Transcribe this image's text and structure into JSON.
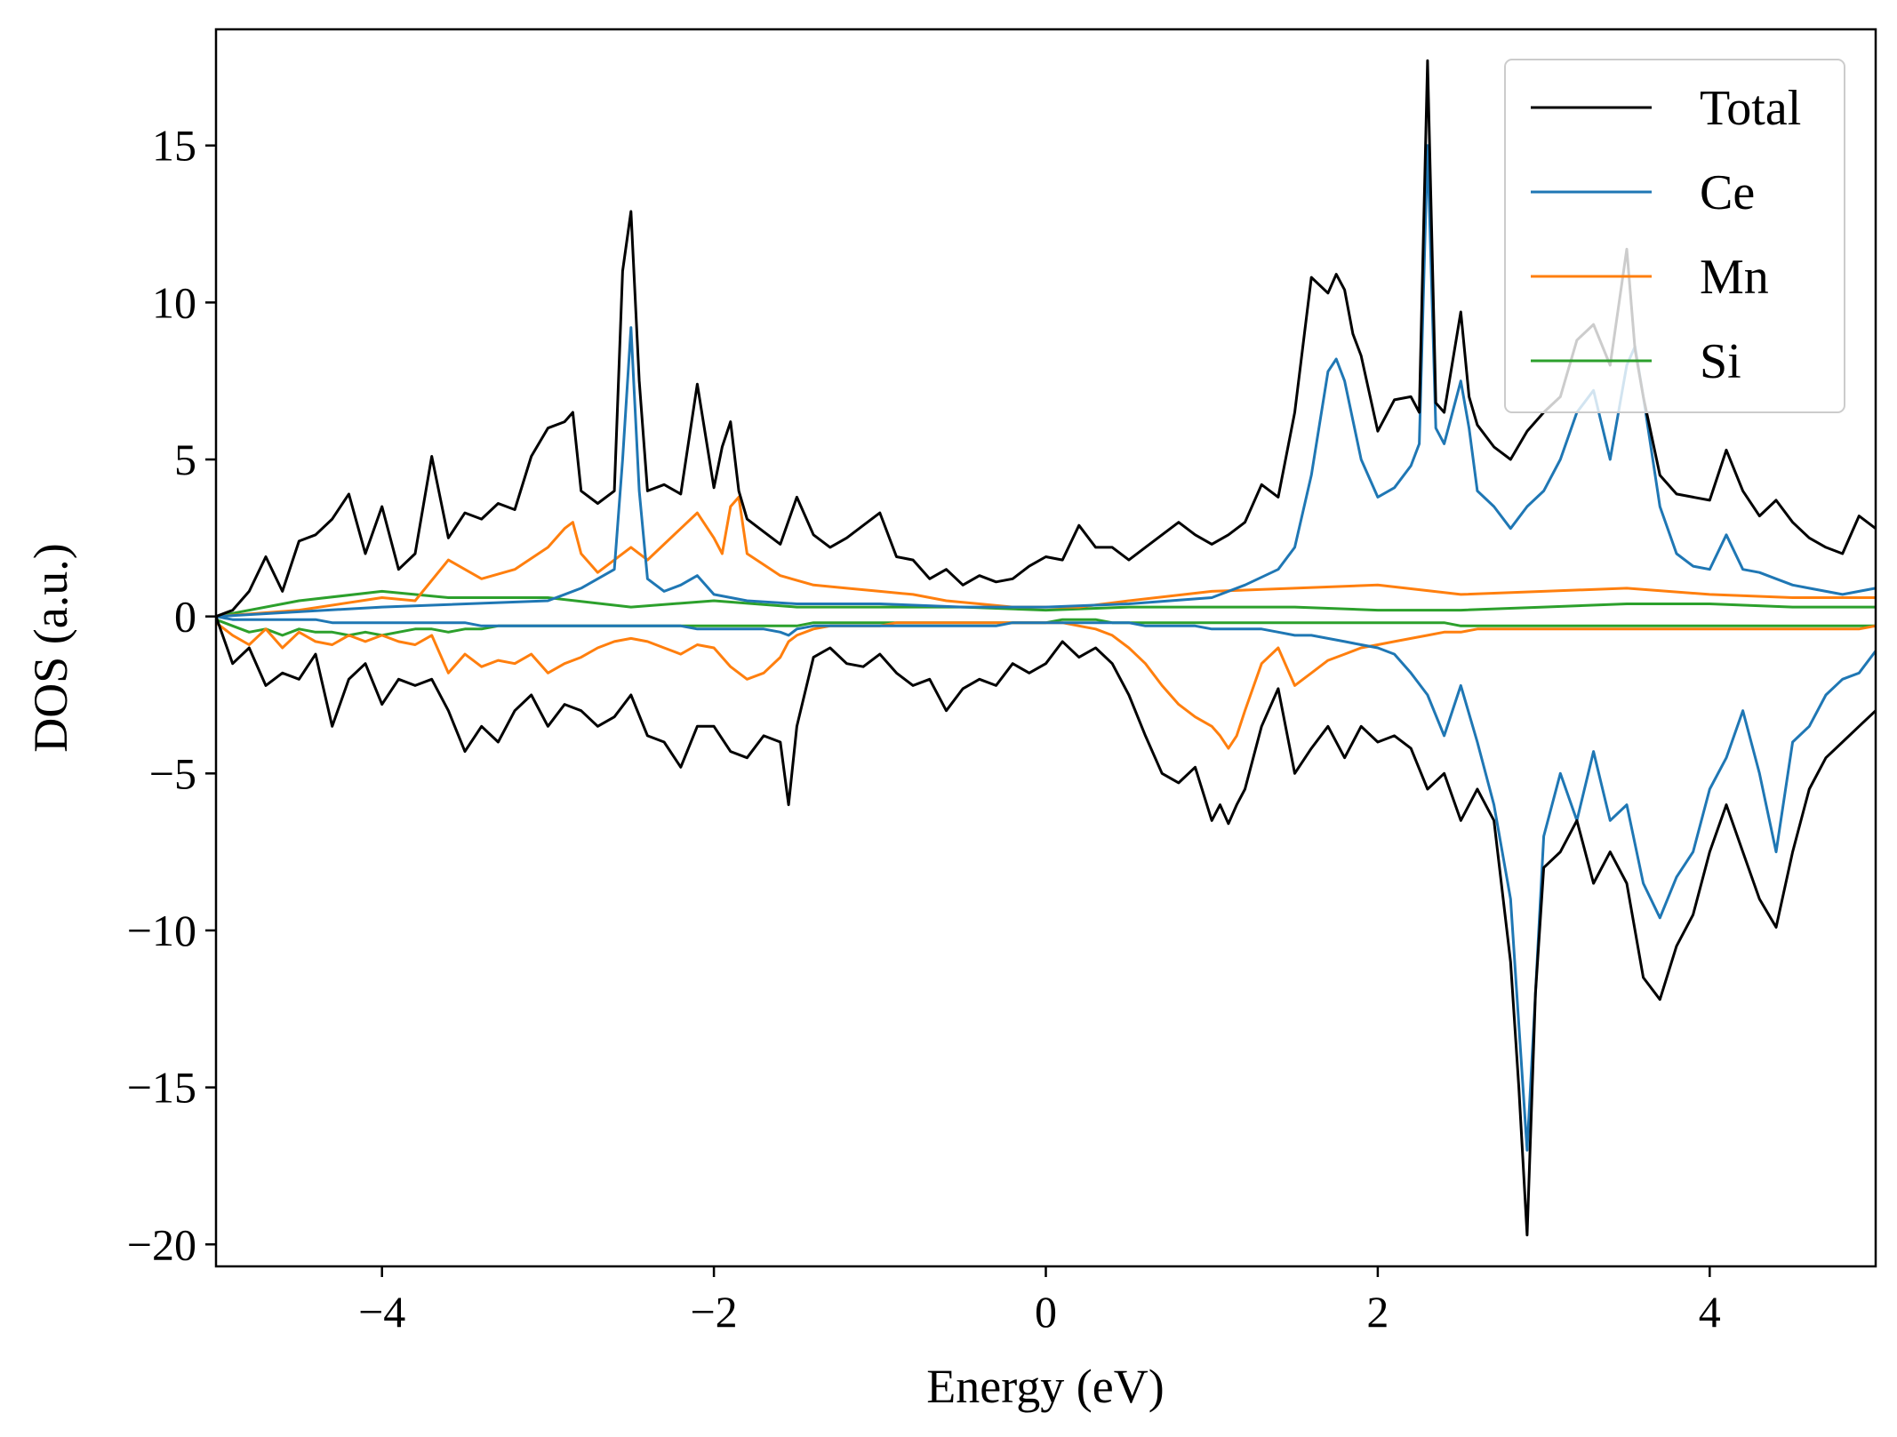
{
  "chart_data": {
    "type": "line",
    "xlabel": "Energy (eV)",
    "ylabel": "DOS (a.u.)",
    "xlim": [
      -5,
      5
    ],
    "ylim": [
      -20.7,
      18.7
    ],
    "xticks": [
      -4,
      -2,
      0,
      2,
      4
    ],
    "xtick_labels": [
      "−4",
      "−2",
      "0",
      "2",
      "4"
    ],
    "yticks": [
      15,
      10,
      5,
      0,
      -5,
      -10,
      -15,
      -20
    ],
    "ytick_labels": [
      "15",
      "10",
      "5",
      "0",
      "−5",
      "−10",
      "−15",
      "−20"
    ],
    "grid": false,
    "legend": {
      "position": "top-right"
    },
    "series": [
      {
        "name": "Total",
        "color": "#000000",
        "up_x": [
          -5,
          -4.9,
          -4.8,
          -4.7,
          -4.6,
          -4.5,
          -4.4,
          -4.3,
          -4.2,
          -4.1,
          -4.0,
          -3.9,
          -3.8,
          -3.7,
          -3.6,
          -3.5,
          -3.4,
          -3.3,
          -3.2,
          -3.1,
          -3.0,
          -2.9,
          -2.85,
          -2.8,
          -2.7,
          -2.6,
          -2.55,
          -2.5,
          -2.45,
          -2.4,
          -2.3,
          -2.2,
          -2.1,
          -2.0,
          -1.95,
          -1.9,
          -1.85,
          -1.8,
          -1.7,
          -1.6,
          -1.5,
          -1.4,
          -1.3,
          -1.2,
          -1.1,
          -1.0,
          -0.9,
          -0.8,
          -0.7,
          -0.6,
          -0.5,
          -0.4,
          -0.3,
          -0.2,
          -0.1,
          0.0,
          0.1,
          0.2,
          0.3,
          0.4,
          0.5,
          0.6,
          0.7,
          0.8,
          0.9,
          1.0,
          1.1,
          1.2,
          1.3,
          1.4,
          1.5,
          1.6,
          1.7,
          1.75,
          1.8,
          1.85,
          1.9,
          2.0,
          2.1,
          2.2,
          2.25,
          2.3,
          2.35,
          2.4,
          2.5,
          2.55,
          2.6,
          2.7,
          2.8,
          2.9,
          3.0,
          3.1,
          3.2,
          3.3,
          3.4,
          3.5,
          3.55,
          3.6,
          3.7,
          3.8,
          3.9,
          4.0,
          4.1,
          4.2,
          4.3,
          4.4,
          4.5,
          4.6,
          4.7,
          4.8,
          4.9,
          5.0
        ],
        "up_y": [
          0,
          0.2,
          0.8,
          1.9,
          0.8,
          2.4,
          2.6,
          3.1,
          3.9,
          2.0,
          3.5,
          1.5,
          2.0,
          5.1,
          2.5,
          3.3,
          3.1,
          3.6,
          3.4,
          5.1,
          6.0,
          6.2,
          6.5,
          4.0,
          3.6,
          4.0,
          11.0,
          12.9,
          7.5,
          4.0,
          4.2,
          3.9,
          7.4,
          4.1,
          5.4,
          6.2,
          4.0,
          3.1,
          2.7,
          2.3,
          3.8,
          2.6,
          2.2,
          2.5,
          2.9,
          3.3,
          1.9,
          1.8,
          1.2,
          1.5,
          1.0,
          1.3,
          1.1,
          1.2,
          1.6,
          1.9,
          1.8,
          2.9,
          2.2,
          2.2,
          1.8,
          2.2,
          2.6,
          3.0,
          2.6,
          2.3,
          2.6,
          3.0,
          4.2,
          3.8,
          6.5,
          10.8,
          10.3,
          10.9,
          10.4,
          9.0,
          8.3,
          5.9,
          6.9,
          7.0,
          6.5,
          17.7,
          6.8,
          6.5,
          9.7,
          7.0,
          6.1,
          5.4,
          5.0,
          5.9,
          6.5,
          7.0,
          8.8,
          9.3,
          8.0,
          11.7,
          8.5,
          7.0,
          4.5,
          3.9,
          3.8,
          3.7,
          5.3,
          4.0,
          3.2,
          3.7,
          3.0,
          2.5,
          2.2,
          2.0,
          3.2,
          2.8
        ]
      },
      {
        "name": "Ce",
        "color": "#1f77b4",
        "up_x": [
          -5,
          -4.0,
          -3.0,
          -2.8,
          -2.7,
          -2.6,
          -2.55,
          -2.5,
          -2.45,
          -2.4,
          -2.3,
          -2.2,
          -2.1,
          -2.0,
          -1.8,
          -1.5,
          -1.0,
          -0.5,
          0.0,
          0.5,
          1.0,
          1.2,
          1.4,
          1.5,
          1.6,
          1.7,
          1.75,
          1.8,
          1.9,
          2.0,
          2.1,
          2.2,
          2.25,
          2.3,
          2.35,
          2.4,
          2.5,
          2.55,
          2.6,
          2.7,
          2.8,
          2.9,
          3.0,
          3.1,
          3.2,
          3.3,
          3.4,
          3.5,
          3.55,
          3.6,
          3.7,
          3.8,
          3.9,
          4.0,
          4.1,
          4.2,
          4.3,
          4.4,
          4.5,
          4.6,
          4.7,
          4.8,
          4.9,
          5.0
        ],
        "up_y": [
          0,
          0.3,
          0.5,
          0.9,
          1.2,
          1.5,
          5.0,
          9.2,
          4.0,
          1.2,
          0.8,
          1.0,
          1.3,
          0.7,
          0.5,
          0.4,
          0.4,
          0.3,
          0.3,
          0.4,
          0.6,
          1.0,
          1.5,
          2.2,
          4.5,
          7.8,
          8.2,
          7.5,
          5.0,
          3.8,
          4.1,
          4.8,
          5.5,
          15.0,
          6.0,
          5.5,
          7.5,
          6.0,
          4.0,
          3.5,
          2.8,
          3.5,
          4.0,
          5.0,
          6.5,
          7.2,
          5.0,
          8.0,
          8.6,
          7.0,
          3.5,
          2.0,
          1.6,
          1.5,
          2.6,
          1.5,
          1.4,
          1.2,
          1.0,
          0.9,
          0.8,
          0.7,
          0.8,
          0.9
        ]
      },
      {
        "name": "Mn",
        "color": "#ff7f0e",
        "up_x": [
          -5,
          -4.5,
          -4.0,
          -3.8,
          -3.6,
          -3.4,
          -3.2,
          -3.0,
          -2.9,
          -2.85,
          -2.8,
          -2.7,
          -2.6,
          -2.5,
          -2.4,
          -2.3,
          -2.2,
          -2.1,
          -2.0,
          -1.95,
          -1.9,
          -1.85,
          -1.8,
          -1.6,
          -1.4,
          -1.2,
          -1.0,
          -0.8,
          -0.6,
          -0.4,
          -0.2,
          0.0,
          0.2,
          0.5,
          1.0,
          1.5,
          2.0,
          2.5,
          3.0,
          3.5,
          4.0,
          4.5,
          5.0
        ],
        "up_y": [
          0,
          0.2,
          0.6,
          0.5,
          1.8,
          1.2,
          1.5,
          2.2,
          2.8,
          3.0,
          2.0,
          1.4,
          1.8,
          2.2,
          1.8,
          2.3,
          2.8,
          3.3,
          2.5,
          2.0,
          3.5,
          3.8,
          2.0,
          1.3,
          1.0,
          0.9,
          0.8,
          0.7,
          0.5,
          0.4,
          0.3,
          0.3,
          0.3,
          0.5,
          0.8,
          0.9,
          1.0,
          0.7,
          0.8,
          0.9,
          0.7,
          0.6,
          0.6
        ]
      },
      {
        "name": "Si",
        "color": "#2ca02c",
        "up_x": [
          -5,
          -4.5,
          -4.0,
          -3.6,
          -3.0,
          -2.5,
          -2.0,
          -1.5,
          -1.0,
          -0.5,
          0.0,
          0.5,
          1.0,
          1.5,
          2.0,
          2.5,
          3.0,
          3.5,
          4.0,
          4.5,
          5.0
        ],
        "up_y": [
          0,
          0.5,
          0.8,
          0.6,
          0.6,
          0.3,
          0.5,
          0.3,
          0.3,
          0.3,
          0.2,
          0.3,
          0.3,
          0.3,
          0.2,
          0.2,
          0.3,
          0.4,
          0.4,
          0.3,
          0.3
        ]
      }
    ],
    "spin_down_x": [
      -5,
      -4.9,
      -4.8,
      -4.7,
      -4.6,
      -4.5,
      -4.4,
      -4.3,
      -4.2,
      -4.1,
      -4.0,
      -3.9,
      -3.8,
      -3.7,
      -3.6,
      -3.5,
      -3.4,
      -3.3,
      -3.2,
      -3.1,
      -3.0,
      -2.9,
      -2.8,
      -2.7,
      -2.6,
      -2.5,
      -2.4,
      -2.3,
      -2.2,
      -2.1,
      -2.0,
      -1.9,
      -1.8,
      -1.7,
      -1.6,
      -1.55,
      -1.5,
      -1.4,
      -1.3,
      -1.2,
      -1.1,
      -1.0,
      -0.9,
      -0.8,
      -0.7,
      -0.6,
      -0.5,
      -0.4,
      -0.3,
      -0.2,
      -0.1,
      0.0,
      0.1,
      0.2,
      0.3,
      0.4,
      0.5,
      0.6,
      0.7,
      0.8,
      0.9,
      1.0,
      1.05,
      1.1,
      1.15,
      1.2,
      1.3,
      1.4,
      1.5,
      1.6,
      1.7,
      1.8,
      1.9,
      2.0,
      2.1,
      2.2,
      2.3,
      2.4,
      2.5,
      2.6,
      2.7,
      2.8,
      2.85,
      2.9,
      2.95,
      3.0,
      3.1,
      3.2,
      3.3,
      3.4,
      3.5,
      3.6,
      3.7,
      3.8,
      3.9,
      4.0,
      4.1,
      4.2,
      4.3,
      4.4,
      4.5,
      4.6,
      4.7,
      4.8,
      4.9,
      5.0
    ],
    "spin_down": {
      "Total": [
        0,
        -1.5,
        -1.0,
        -2.2,
        -1.8,
        -2.0,
        -1.2,
        -3.5,
        -2.0,
        -1.5,
        -2.8,
        -2.0,
        -2.2,
        -2.0,
        -3.0,
        -4.3,
        -3.5,
        -4.0,
        -3.0,
        -2.5,
        -3.5,
        -2.8,
        -3.0,
        -3.5,
        -3.2,
        -2.5,
        -3.8,
        -4.0,
        -4.8,
        -3.5,
        -3.5,
        -4.3,
        -4.5,
        -3.8,
        -4.0,
        -6.0,
        -3.5,
        -1.3,
        -1.0,
        -1.5,
        -1.6,
        -1.2,
        -1.8,
        -2.2,
        -2.0,
        -3.0,
        -2.3,
        -2.0,
        -2.2,
        -1.5,
        -1.8,
        -1.5,
        -0.8,
        -1.3,
        -1.0,
        -1.5,
        -2.5,
        -3.8,
        -5.0,
        -5.3,
        -4.8,
        -6.5,
        -6.0,
        -6.6,
        -6.0,
        -5.5,
        -3.5,
        -2.3,
        -5.0,
        -4.2,
        -3.5,
        -4.5,
        -3.5,
        -4.0,
        -3.8,
        -4.2,
        -5.5,
        -5.0,
        -6.5,
        -5.5,
        -6.5,
        -11.0,
        -15.0,
        -19.7,
        -12.0,
        -8.0,
        -7.5,
        -6.5,
        -8.5,
        -7.5,
        -8.5,
        -11.5,
        -12.2,
        -10.5,
        -9.5,
        -7.5,
        -6.0,
        -7.5,
        -9.0,
        -9.9,
        -7.5,
        -5.5,
        -4.5,
        -4.0,
        -3.5,
        -3.0
      ],
      "Ce": [
        0,
        -0.1,
        -0.1,
        -0.1,
        -0.1,
        -0.1,
        -0.1,
        -0.2,
        -0.2,
        -0.2,
        -0.2,
        -0.2,
        -0.2,
        -0.2,
        -0.2,
        -0.2,
        -0.3,
        -0.3,
        -0.3,
        -0.3,
        -0.3,
        -0.3,
        -0.3,
        -0.3,
        -0.3,
        -0.3,
        -0.3,
        -0.3,
        -0.3,
        -0.4,
        -0.4,
        -0.4,
        -0.4,
        -0.4,
        -0.5,
        -0.6,
        -0.4,
        -0.3,
        -0.3,
        -0.3,
        -0.3,
        -0.3,
        -0.3,
        -0.3,
        -0.3,
        -0.3,
        -0.3,
        -0.3,
        -0.3,
        -0.2,
        -0.2,
        -0.2,
        -0.2,
        -0.2,
        -0.2,
        -0.2,
        -0.2,
        -0.3,
        -0.3,
        -0.3,
        -0.3,
        -0.4,
        -0.4,
        -0.4,
        -0.4,
        -0.4,
        -0.4,
        -0.5,
        -0.6,
        -0.6,
        -0.7,
        -0.8,
        -0.9,
        -1.0,
        -1.2,
        -1.8,
        -2.5,
        -3.8,
        -2.2,
        -4.0,
        -6.0,
        -9.0,
        -13.0,
        -17.0,
        -12.0,
        -7.0,
        -5.0,
        -6.5,
        -4.3,
        -6.5,
        -6.0,
        -8.5,
        -9.6,
        -8.3,
        -7.5,
        -5.5,
        -4.5,
        -3.0,
        -5.0,
        -7.5,
        -4.0,
        -3.5,
        -2.5,
        -2.0,
        -1.8,
        -1.1
      ],
      "Mn": [
        -0.2,
        -0.6,
        -0.9,
        -0.4,
        -1.0,
        -0.5,
        -0.8,
        -0.9,
        -0.6,
        -0.8,
        -0.6,
        -0.8,
        -0.9,
        -0.6,
        -1.8,
        -1.2,
        -1.6,
        -1.4,
        -1.5,
        -1.2,
        -1.8,
        -1.5,
        -1.3,
        -1.0,
        -0.8,
        -0.7,
        -0.8,
        -1.0,
        -1.2,
        -0.9,
        -1.0,
        -1.6,
        -2.0,
        -1.8,
        -1.3,
        -0.8,
        -0.6,
        -0.4,
        -0.3,
        -0.3,
        -0.3,
        -0.3,
        -0.2,
        -0.2,
        -0.2,
        -0.2,
        -0.2,
        -0.2,
        -0.2,
        -0.2,
        -0.2,
        -0.2,
        -0.2,
        -0.3,
        -0.4,
        -0.6,
        -1.0,
        -1.5,
        -2.2,
        -2.8,
        -3.2,
        -3.5,
        -3.8,
        -4.2,
        -3.8,
        -3.0,
        -1.5,
        -1.0,
        -2.2,
        -1.8,
        -1.4,
        -1.2,
        -1.0,
        -0.9,
        -0.8,
        -0.7,
        -0.6,
        -0.5,
        -0.5,
        -0.4,
        -0.4,
        -0.4,
        -0.4,
        -0.4,
        -0.4,
        -0.4,
        -0.4,
        -0.4,
        -0.4,
        -0.4,
        -0.4,
        -0.4,
        -0.4,
        -0.4,
        -0.4,
        -0.4,
        -0.4,
        -0.4,
        -0.4,
        -0.4,
        -0.4,
        -0.4,
        -0.4,
        -0.4,
        -0.4,
        -0.3
      ],
      "Si": [
        -0.1,
        -0.3,
        -0.5,
        -0.4,
        -0.6,
        -0.4,
        -0.5,
        -0.5,
        -0.6,
        -0.5,
        -0.6,
        -0.5,
        -0.4,
        -0.4,
        -0.5,
        -0.4,
        -0.4,
        -0.3,
        -0.3,
        -0.3,
        -0.3,
        -0.3,
        -0.3,
        -0.3,
        -0.3,
        -0.3,
        -0.3,
        -0.3,
        -0.3,
        -0.3,
        -0.3,
        -0.3,
        -0.3,
        -0.3,
        -0.3,
        -0.3,
        -0.3,
        -0.2,
        -0.2,
        -0.2,
        -0.2,
        -0.2,
        -0.2,
        -0.2,
        -0.2,
        -0.2,
        -0.2,
        -0.2,
        -0.2,
        -0.2,
        -0.2,
        -0.2,
        -0.1,
        -0.1,
        -0.1,
        -0.2,
        -0.2,
        -0.2,
        -0.2,
        -0.2,
        -0.2,
        -0.2,
        -0.2,
        -0.2,
        -0.2,
        -0.2,
        -0.2,
        -0.2,
        -0.2,
        -0.2,
        -0.2,
        -0.2,
        -0.2,
        -0.2,
        -0.2,
        -0.2,
        -0.2,
        -0.2,
        -0.3,
        -0.3,
        -0.3,
        -0.3,
        -0.3,
        -0.3,
        -0.3,
        -0.3,
        -0.3,
        -0.3,
        -0.3,
        -0.3,
        -0.3,
        -0.3,
        -0.3,
        -0.3,
        -0.3,
        -0.3,
        -0.3,
        -0.3,
        -0.3,
        -0.3,
        -0.3,
        -0.3,
        -0.3,
        -0.3,
        -0.3,
        -0.3
      ]
    }
  }
}
